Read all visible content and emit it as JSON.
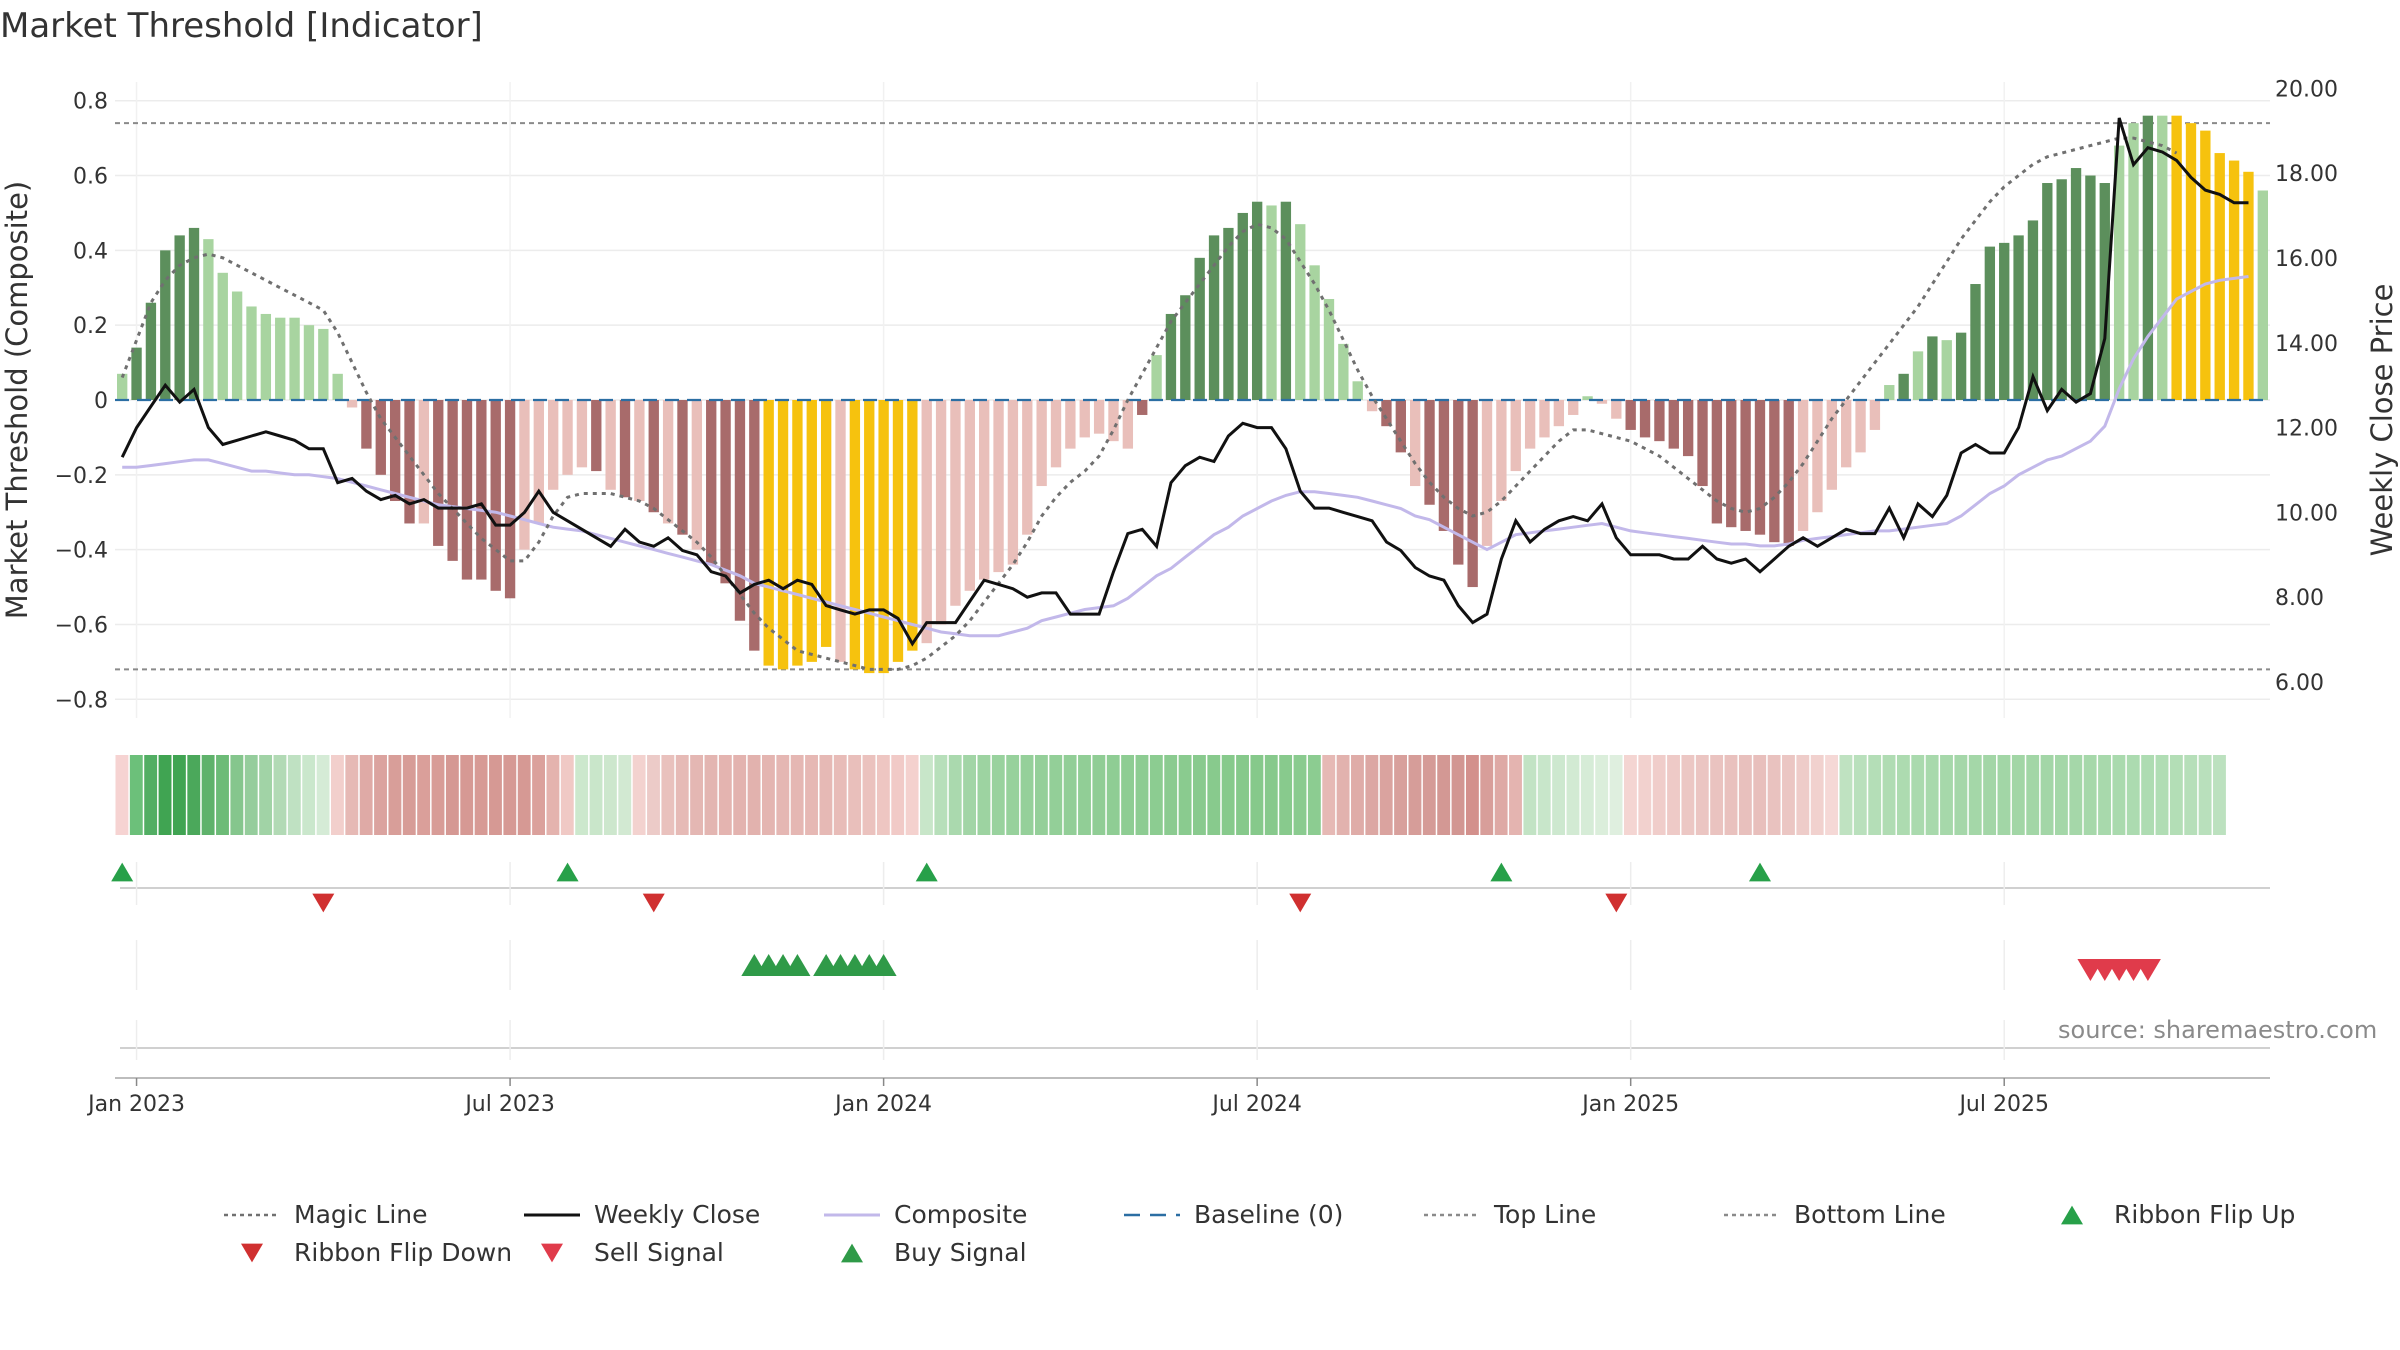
{
  "title": "Market Threshold [Indicator]",
  "source_text": "source: sharemaestro.com",
  "colors": {
    "strong_green": "#5c8f5c",
    "light_green": "#a8d4a0",
    "strong_red": "#a86b6b",
    "light_red": "#e9bfba",
    "gold": "#f6c20e",
    "magic_line": "#707070",
    "weekly_close": "#111111",
    "composite": "#c2b8ea",
    "baseline": "#2b6ea3",
    "ref_line": "#8a8a8a",
    "flip_up": "#27a049",
    "flip_down": "#d03030",
    "sell_signal": "#e03b4b",
    "buy_signal": "#2f9a48"
  },
  "chart_data": {
    "type": "bar",
    "title": "Market Threshold [Indicator]",
    "ylabel": "Market Threshold (Composite)",
    "y2label": "Weekly Close Price",
    "ylim": [
      -0.85,
      0.85
    ],
    "y2lim": [
      5.15,
      20.15
    ],
    "yticks": [
      0.8,
      0.6,
      0.4,
      0.2,
      0,
      -0.2,
      -0.4,
      -0.6,
      -0.8
    ],
    "ytick_labels": [
      "0.8",
      "0.6",
      "0.4",
      "0.2",
      "0",
      "−0.2",
      "−0.4",
      "−0.6",
      "−0.8"
    ],
    "y2ticks": [
      20,
      18,
      16,
      14,
      12,
      10,
      8,
      6
    ],
    "y2tick_labels": [
      "20.00",
      "18.00",
      "16.00",
      "14.00",
      "12.00",
      "10.00",
      "8.00",
      "6.00"
    ],
    "xticks": [
      {
        "label": "Jan 2023",
        "week": 1
      },
      {
        "label": "Jul 2023",
        "week": 27
      },
      {
        "label": "Jan 2024",
        "week": 53
      },
      {
        "label": "Jul 2024",
        "week": 79
      },
      {
        "label": "Jan 2025",
        "week": 105
      },
      {
        "label": "Jul 2025",
        "week": 131
      }
    ],
    "x_start": "2022-12-23",
    "x_interval": "weekly",
    "top_line": 0.74,
    "bottom_line": -0.72,
    "baseline": 0,
    "grid": true,
    "legend_position": "bottom",
    "histogram_values": [
      0.07,
      0.14,
      0.26,
      0.4,
      0.44,
      0.46,
      0.43,
      0.34,
      0.29,
      0.25,
      0.23,
      0.22,
      0.22,
      0.2,
      0.19,
      0.07,
      -0.02,
      -0.13,
      -0.2,
      -0.27,
      -0.33,
      -0.33,
      -0.39,
      -0.43,
      -0.48,
      -0.48,
      -0.51,
      -0.53,
      -0.4,
      -0.33,
      -0.24,
      -0.2,
      -0.18,
      -0.19,
      -0.24,
      -0.26,
      -0.27,
      -0.3,
      -0.33,
      -0.36,
      -0.4,
      -0.44,
      -0.49,
      -0.59,
      -0.67,
      -0.71,
      -0.72,
      -0.71,
      -0.7,
      -0.66,
      -0.7,
      -0.72,
      -0.73,
      -0.73,
      -0.7,
      -0.67,
      -0.65,
      -0.6,
      -0.55,
      -0.51,
      -0.48,
      -0.46,
      -0.44,
      -0.36,
      -0.23,
      -0.18,
      -0.13,
      -0.1,
      -0.09,
      -0.11,
      -0.13,
      -0.04,
      0.12,
      0.23,
      0.28,
      0.38,
      0.44,
      0.46,
      0.5,
      0.53,
      0.52,
      0.53,
      0.47,
      0.36,
      0.27,
      0.15,
      0.05,
      -0.03,
      -0.07,
      -0.14,
      -0.23,
      -0.28,
      -0.35,
      -0.44,
      -0.5,
      -0.39,
      -0.27,
      -0.19,
      -0.13,
      -0.1,
      -0.07,
      -0.04,
      0.01,
      -0.01,
      -0.05,
      -0.08,
      -0.1,
      -0.11,
      -0.13,
      -0.15,
      -0.23,
      -0.33,
      -0.34,
      -0.35,
      -0.36,
      -0.38,
      -0.39,
      -0.35,
      -0.3,
      -0.24,
      -0.18,
      -0.14,
      -0.08,
      0.04,
      0.07,
      0.13,
      0.17,
      0.16,
      0.18,
      0.31,
      0.41,
      0.42,
      0.44,
      0.48,
      0.58,
      0.59,
      0.62,
      0.6,
      0.58,
      0.68,
      0.74,
      0.76,
      0.76,
      0.76,
      0.74,
      0.72,
      0.66,
      0.64,
      0.61,
      0.56
    ],
    "histogram_colors": [
      "lg",
      "sg",
      "sg",
      "sg",
      "sg",
      "sg",
      "lg",
      "lg",
      "lg",
      "lg",
      "lg",
      "lg",
      "lg",
      "lg",
      "lg",
      "lg",
      "lr",
      "sr",
      "sr",
      "sr",
      "sr",
      "lr",
      "sr",
      "sr",
      "sr",
      "sr",
      "sr",
      "sr",
      "lr",
      "lr",
      "lr",
      "lr",
      "lr",
      "sr",
      "lr",
      "sr",
      "lr",
      "sr",
      "lr",
      "sr",
      "lr",
      "sr",
      "sr",
      "sr",
      "sr",
      "y",
      "y",
      "y",
      "y",
      "y",
      "lr",
      "y",
      "y",
      "y",
      "y",
      "y",
      "lr",
      "lr",
      "lr",
      "lr",
      "lr",
      "lr",
      "lr",
      "lr",
      "lr",
      "lr",
      "lr",
      "lr",
      "lr",
      "lr",
      "lr",
      "sr",
      "lg",
      "sg",
      "sg",
      "sg",
      "sg",
      "sg",
      "sg",
      "sg",
      "lg",
      "sg",
      "lg",
      "lg",
      "lg",
      "lg",
      "lg",
      "lr",
      "sr",
      "sr",
      "lr",
      "sr",
      "sr",
      "sr",
      "sr",
      "lr",
      "lr",
      "lr",
      "lr",
      "lr",
      "lr",
      "lr",
      "lg",
      "lr",
      "lr",
      "sr",
      "sr",
      "sr",
      "sr",
      "sr",
      "sr",
      "sr",
      "sr",
      "sr",
      "sr",
      "sr",
      "sr",
      "lr",
      "lr",
      "lr",
      "lr",
      "lr",
      "lr",
      "lg",
      "sg",
      "lg",
      "sg",
      "lg",
      "sg",
      "sg",
      "sg",
      "sg",
      "sg",
      "sg",
      "sg",
      "sg",
      "sg",
      "sg",
      "sg",
      "lg",
      "lg",
      "sg",
      "lg",
      "y",
      "y",
      "y",
      "y",
      "y",
      "y",
      "lg",
      "lg",
      "lg",
      "lg"
    ],
    "magic_line": [
      0.06,
      0.16,
      0.26,
      0.32,
      0.36,
      0.38,
      0.39,
      0.38,
      0.36,
      0.34,
      0.32,
      0.3,
      0.28,
      0.26,
      0.24,
      0.18,
      0.1,
      0.02,
      -0.05,
      -0.1,
      -0.15,
      -0.2,
      -0.25,
      -0.29,
      -0.33,
      -0.37,
      -0.4,
      -0.43,
      -0.43,
      -0.38,
      -0.31,
      -0.26,
      -0.25,
      -0.25,
      -0.25,
      -0.26,
      -0.27,
      -0.29,
      -0.32,
      -0.35,
      -0.38,
      -0.42,
      -0.47,
      -0.52,
      -0.57,
      -0.61,
      -0.64,
      -0.67,
      -0.68,
      -0.69,
      -0.7,
      -0.71,
      -0.72,
      -0.72,
      -0.72,
      -0.71,
      -0.69,
      -0.66,
      -0.63,
      -0.59,
      -0.54,
      -0.49,
      -0.44,
      -0.38,
      -0.31,
      -0.26,
      -0.22,
      -0.19,
      -0.15,
      -0.08,
      0.0,
      0.07,
      0.14,
      0.21,
      0.26,
      0.31,
      0.36,
      0.41,
      0.45,
      0.47,
      0.46,
      0.43,
      0.37,
      0.31,
      0.24,
      0.16,
      0.08,
      0.01,
      -0.05,
      -0.11,
      -0.17,
      -0.22,
      -0.26,
      -0.29,
      -0.31,
      -0.3,
      -0.27,
      -0.23,
      -0.19,
      -0.15,
      -0.11,
      -0.08,
      -0.08,
      -0.09,
      -0.1,
      -0.11,
      -0.13,
      -0.15,
      -0.18,
      -0.21,
      -0.24,
      -0.27,
      -0.29,
      -0.3,
      -0.29,
      -0.26,
      -0.22,
      -0.17,
      -0.11,
      -0.05,
      0.0,
      0.05,
      0.1,
      0.15,
      0.2,
      0.25,
      0.31,
      0.37,
      0.43,
      0.48,
      0.53,
      0.57,
      0.6,
      0.63,
      0.65,
      0.66,
      0.67,
      0.68,
      0.69,
      0.7,
      0.7,
      0.69,
      0.68,
      0.66
    ],
    "weekly_close": [
      11.3,
      12.0,
      12.5,
      13.0,
      12.6,
      12.9,
      12.0,
      11.6,
      11.7,
      11.8,
      11.9,
      11.8,
      11.7,
      11.5,
      11.5,
      10.7,
      10.8,
      10.5,
      10.3,
      10.4,
      10.2,
      10.3,
      10.1,
      10.1,
      10.1,
      10.2,
      9.7,
      9.7,
      10.0,
      10.5,
      10.0,
      9.8,
      9.6,
      9.4,
      9.2,
      9.6,
      9.3,
      9.2,
      9.4,
      9.1,
      9.0,
      8.6,
      8.5,
      8.1,
      8.3,
      8.4,
      8.2,
      8.4,
      8.3,
      7.8,
      7.7,
      7.6,
      7.7,
      7.7,
      7.5,
      6.9,
      7.4,
      7.4,
      7.4,
      7.9,
      8.4,
      8.3,
      8.2,
      8.0,
      8.1,
      8.1,
      7.6,
      7.6,
      7.6,
      8.6,
      9.5,
      9.6,
      9.2,
      10.7,
      11.1,
      11.3,
      11.2,
      11.8,
      12.1,
      12.0,
      12.0,
      11.5,
      10.5,
      10.1,
      10.1,
      10.0,
      9.9,
      9.8,
      9.3,
      9.1,
      8.7,
      8.5,
      8.4,
      7.8,
      7.4,
      7.6,
      8.9,
      9.8,
      9.3,
      9.6,
      9.8,
      9.9,
      9.8,
      10.2,
      9.4,
      9.0,
      9.0,
      9.0,
      8.9,
      8.9,
      9.2,
      8.9,
      8.8,
      8.9,
      8.6,
      8.9,
      9.2,
      9.4,
      9.2,
      9.4,
      9.6,
      9.5,
      9.5,
      10.1,
      9.4,
      10.2,
      9.9,
      10.4,
      11.4,
      11.6,
      11.4,
      11.4,
      12.0,
      13.2,
      12.4,
      12.9,
      12.6,
      12.8,
      14.1,
      19.3,
      18.2,
      18.6,
      18.5,
      18.3,
      17.9,
      17.6,
      17.5,
      17.3,
      17.3
    ],
    "composite": [
      -0.18,
      -0.18,
      -0.175,
      -0.17,
      -0.165,
      -0.16,
      -0.16,
      -0.17,
      -0.18,
      -0.19,
      -0.19,
      -0.195,
      -0.2,
      -0.2,
      -0.205,
      -0.21,
      -0.22,
      -0.23,
      -0.24,
      -0.25,
      -0.26,
      -0.27,
      -0.28,
      -0.285,
      -0.29,
      -0.295,
      -0.3,
      -0.31,
      -0.32,
      -0.33,
      -0.34,
      -0.345,
      -0.35,
      -0.36,
      -0.37,
      -0.38,
      -0.39,
      -0.4,
      -0.41,
      -0.42,
      -0.43,
      -0.44,
      -0.455,
      -0.47,
      -0.49,
      -0.5,
      -0.51,
      -0.52,
      -0.53,
      -0.54,
      -0.55,
      -0.56,
      -0.57,
      -0.58,
      -0.59,
      -0.6,
      -0.61,
      -0.62,
      -0.625,
      -0.63,
      -0.63,
      -0.63,
      -0.62,
      -0.61,
      -0.59,
      -0.58,
      -0.57,
      -0.56,
      -0.555,
      -0.55,
      -0.53,
      -0.5,
      -0.47,
      -0.45,
      -0.42,
      -0.39,
      -0.36,
      -0.34,
      -0.31,
      -0.29,
      -0.27,
      -0.255,
      -0.245,
      -0.245,
      -0.25,
      -0.255,
      -0.26,
      -0.27,
      -0.28,
      -0.29,
      -0.31,
      -0.32,
      -0.34,
      -0.36,
      -0.38,
      -0.4,
      -0.38,
      -0.36,
      -0.355,
      -0.35,
      -0.345,
      -0.34,
      -0.335,
      -0.33,
      -0.34,
      -0.35,
      -0.355,
      -0.36,
      -0.365,
      -0.37,
      -0.375,
      -0.38,
      -0.385,
      -0.385,
      -0.39,
      -0.39,
      -0.385,
      -0.375,
      -0.37,
      -0.365,
      -0.36,
      -0.355,
      -0.35,
      -0.35,
      -0.345,
      -0.34,
      -0.335,
      -0.33,
      -0.31,
      -0.28,
      -0.25,
      -0.23,
      -0.2,
      -0.18,
      -0.16,
      -0.15,
      -0.13,
      -0.11,
      -0.07,
      0.03,
      0.11,
      0.17,
      0.22,
      0.27,
      0.29,
      0.31,
      0.32,
      0.325,
      0.33
    ],
    "ribbon_colors": [
      "#f6d3d2",
      "#6cc07a",
      "#52ae63",
      "#40a452",
      "#40a452",
      "#4ba85b",
      "#5fb26b",
      "#6cbb77",
      "#85c68d",
      "#95cd9c",
      "#a1d3a6",
      "#b2dab5",
      "#bfe1c2",
      "#cae7cc",
      "#d5ebd6",
      "#f2cfcc",
      "#e6b9b5",
      "#dfaaa6",
      "#dba39f",
      "#d89e99",
      "#d79c97",
      "#da9f9a",
      "#d89c97",
      "#d59893",
      "#d69994",
      "#d79a95",
      "#d69994",
      "#d69994",
      "#d69994",
      "#dba19c",
      "#e4b3ae",
      "#f0c9c5",
      "#cce8cd",
      "#c9e6ca",
      "#cde7cd",
      "#d2e9d2",
      "#f3d2cf",
      "#eccbc8",
      "#e9c1bd",
      "#e6bab6",
      "#e4b7b3",
      "#e3b5b1",
      "#e4b4b0",
      "#e3b3af",
      "#e2b2ae",
      "#e4b5b1",
      "#e5b7b3",
      "#e5b7b3",
      "#e6b8b4",
      "#e6b9b5",
      "#e8bcb8",
      "#e9bfbb",
      "#ebc2be",
      "#eec6c2",
      "#f1cac7",
      "#f4d1ce",
      "#c8e6c9",
      "#b7dfba",
      "#aad9ae",
      "#a2d5a6",
      "#9dd3a1",
      "#99d29e",
      "#97d19c",
      "#95d09a",
      "#94cf99",
      "#93cf98",
      "#92ce97",
      "#91ce96",
      "#90cd95",
      "#8fcd94",
      "#8ecd93",
      "#8dcc92",
      "#8ccc91",
      "#8bcb90",
      "#8acb8f",
      "#89ca8e",
      "#88ca8d",
      "#87ca8c",
      "#86c98b",
      "#86c98b",
      "#87c98c",
      "#88ca8d",
      "#8acb8f",
      "#8ccc91",
      "#e6b9b5",
      "#e2b2ae",
      "#dfaca8",
      "#dca7a3",
      "#daa39f",
      "#d8a09c",
      "#d69d99",
      "#d59b97",
      "#d39894",
      "#d29692",
      "#d3908c",
      "#d89e9a",
      "#dea9a5",
      "#e4b4b0",
      "#c2e3c4",
      "#c8e6ca",
      "#cde8cf",
      "#d2ead3",
      "#d6ecd7",
      "#dbeedb",
      "#dfefdf",
      "#f4d5d2",
      "#f2d1ce",
      "#f0cdca",
      "#eecac7",
      "#ecc7c4",
      "#ebc5c2",
      "#eac3c0",
      "#e9c1be",
      "#e8c0bd",
      "#e8bfbc",
      "#e9c2bf",
      "#ebc6c3",
      "#eeccc9",
      "#f1d1ce",
      "#f5d8d6",
      "#bfe2c1",
      "#b9e0bc",
      "#b4deb7",
      "#b0dcb3",
      "#addbb0",
      "#aadaae",
      "#a8d9ac",
      "#a6d8aa",
      "#a5d7a9",
      "#a4d7a8",
      "#a3d6a7",
      "#a2d6a6",
      "#a2d6a6",
      "#a2d6a6",
      "#a3d6a7",
      "#a4d7a8",
      "#a5d7a9",
      "#a6d8aa",
      "#a8d9ac",
      "#aadaae",
      "#acdbb0",
      "#aedcb2",
      "#b0ddb4",
      "#b3deb6",
      "#b6dfb9",
      "#b9e0bc",
      "#bce1bf"
    ],
    "ribbon_flip_up_weeks": [
      0,
      31,
      56,
      96,
      114
    ],
    "ribbon_flip_down_weeks": [
      14,
      37,
      82,
      104
    ],
    "buy_signal_weeks": [
      44,
      45,
      46,
      47,
      49,
      50,
      51,
      52,
      53
    ],
    "sell_signal_weeks": [
      137,
      138,
      139,
      140,
      141
    ],
    "series": [
      {
        "name": "Magic Line",
        "style": "dotted",
        "color": "#707070"
      },
      {
        "name": "Weekly Close",
        "style": "solid",
        "color": "#111111"
      },
      {
        "name": "Composite",
        "style": "solid",
        "color": "#c2b8ea"
      },
      {
        "name": "Baseline (0)",
        "style": "dashed",
        "color": "#2b6ea3"
      },
      {
        "name": "Top Line",
        "style": "dotted",
        "color": "#8a8a8a"
      },
      {
        "name": "Bottom Line",
        "style": "dotted",
        "color": "#8a8a8a"
      },
      {
        "name": "Ribbon Flip Up",
        "style": "marker-up",
        "color": "#27a049"
      },
      {
        "name": "Ribbon Flip Down",
        "style": "marker-down",
        "color": "#d03030"
      },
      {
        "name": "Sell Signal",
        "style": "marker-down",
        "color": "#e03b4b"
      },
      {
        "name": "Buy Signal",
        "style": "marker-up",
        "color": "#2f9a48"
      }
    ]
  }
}
